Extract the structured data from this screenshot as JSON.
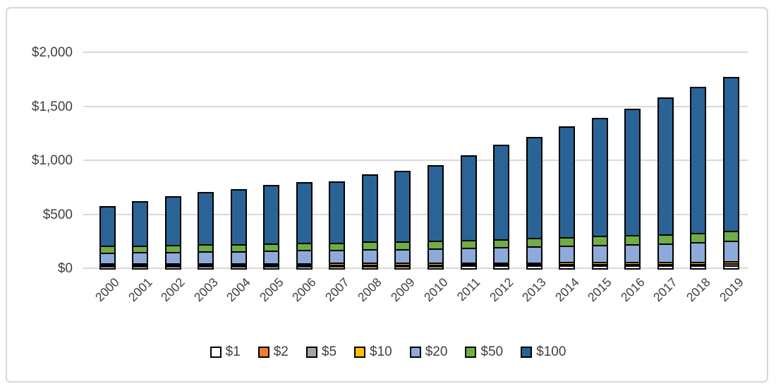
{
  "chart_data": {
    "type": "bar",
    "stacked": true,
    "title": "",
    "categories": [
      "2000",
      "2001",
      "2002",
      "2003",
      "2004",
      "2005",
      "2006",
      "2007",
      "2008",
      "2009",
      "2010",
      "2011",
      "2012",
      "2013",
      "2014",
      "2015",
      "2016",
      "2017",
      "2018",
      "2019"
    ],
    "series": [
      {
        "name": "$1",
        "color": "#ffffff",
        "values": [
          7.7,
          7.8,
          8.0,
          8.2,
          8.4,
          8.6,
          8.8,
          9.0,
          9.3,
          9.5,
          9.7,
          10.0,
          10.3,
          10.6,
          11.0,
          11.4,
          11.7,
          12.1,
          12.4,
          12.7
        ]
      },
      {
        "name": "$2",
        "color": "#ed7d31",
        "values": [
          1.2,
          1.3,
          1.3,
          1.4,
          1.4,
          1.5,
          1.5,
          1.6,
          1.7,
          1.8,
          1.9,
          2.0,
          2.1,
          2.2,
          2.3,
          2.4,
          2.5,
          2.5,
          2.6,
          2.6
        ]
      },
      {
        "name": "$5",
        "color": "#a5a5a5",
        "values": [
          8.8,
          9.0,
          9.2,
          9.4,
          9.7,
          9.9,
          10.1,
          10.3,
          10.5,
          10.8,
          11.0,
          11.3,
          11.7,
          12.1,
          12.4,
          12.8,
          13.2,
          13.7,
          14.2,
          15.0
        ]
      },
      {
        "name": "$10",
        "color": "#ffc000",
        "values": [
          14.6,
          14.8,
          15.0,
          15.2,
          15.4,
          15.6,
          15.8,
          16.0,
          16.3,
          16.5,
          16.7,
          17.0,
          17.3,
          17.6,
          18.0,
          18.3,
          18.7,
          19.1,
          19.8,
          20.4
        ]
      },
      {
        "name": "$20",
        "color": "#8eaadb",
        "values": [
          100,
          103,
          106,
          109,
          112,
          115,
          118,
          120,
          125,
          128,
          131,
          136,
          141,
          146,
          152,
          158,
          164,
          171,
          181,
          192
        ]
      },
      {
        "name": "$50",
        "color": "#70ad47",
        "values": [
          61,
          62,
          63,
          64,
          65,
          66,
          67,
          68,
          70,
          71,
          72,
          74,
          76,
          78,
          80,
          82,
          84,
          85,
          87,
          88
        ]
      },
      {
        "name": "$100",
        "color": "#2a6496",
        "values": [
          366.7,
          412.1,
          452.5,
          482.8,
          508.1,
          543.4,
          563.8,
          565.1,
          622.2,
          652.4,
          697.7,
          784.7,
          871.6,
          933.5,
          1024.3,
          1095.1,
          1170.9,
          1266.6,
          1353.0,
          1429.3
        ]
      }
    ],
    "yticks": [
      {
        "label": "$0",
        "value": 0
      },
      {
        "label": "$500",
        "value": 500
      },
      {
        "label": "$1,000",
        "value": 1000
      },
      {
        "label": "$1,500",
        "value": 1500
      },
      {
        "label": "$2,000",
        "value": 2000
      }
    ],
    "ylim": [
      0,
      2000
    ],
    "grid": true,
    "legend_position": "bottom",
    "x_label_rotation": -45,
    "colors": {
      "gridline": "#d9d9d9",
      "axis_text": "#404040",
      "segment_outline": "#000000",
      "chart_border": "#d7d7d7"
    }
  }
}
